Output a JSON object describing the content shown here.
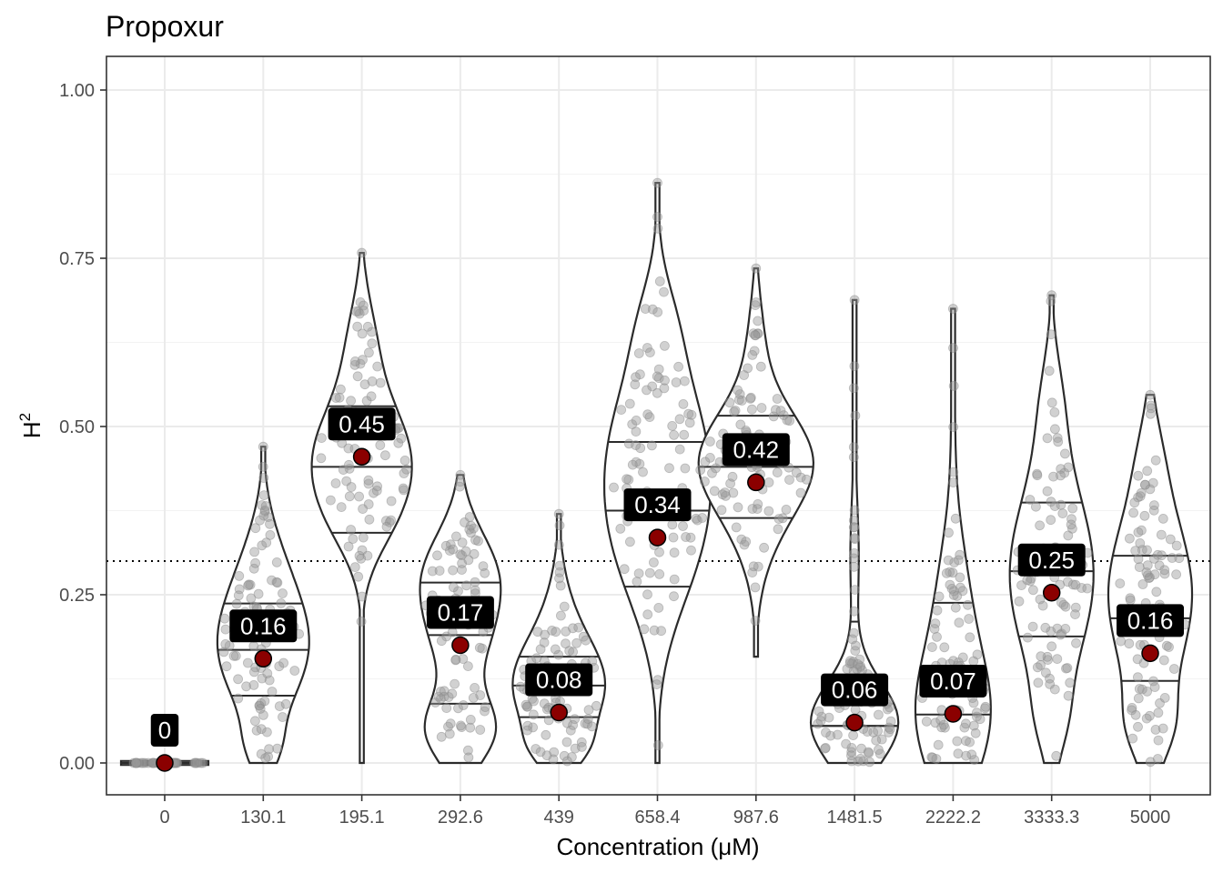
{
  "chart_data": {
    "type": "violin",
    "title": "Propoxur",
    "xlabel": "Concentration (μM)",
    "ylabel": "H",
    "ylabel_superscript": "2",
    "ylim": [
      -0.05,
      1.05
    ],
    "yticks": [
      0.0,
      0.25,
      0.5,
      0.75,
      1.0
    ],
    "ytick_labels": [
      "0.00",
      "0.25",
      "0.50",
      "0.75",
      "1.00"
    ],
    "threshold": 0.3,
    "categories": [
      "0",
      "130.1",
      "195.1",
      "292.6",
      "439",
      "658.4",
      "987.6",
      "1481.5",
      "2222.2",
      "3333.3",
      "5000"
    ],
    "means": [
      0.0,
      0.155,
      0.455,
      0.175,
      0.075,
      0.335,
      0.417,
      0.06,
      0.073,
      0.253,
      0.163
    ],
    "mean_labels": [
      "0",
      "0.16",
      "0.45",
      "0.17",
      "0.08",
      "0.34",
      "0.42",
      "0.06",
      "0.07",
      "0.25",
      "0.16"
    ],
    "quantiles": [
      [
        0.0,
        0.0,
        0.0
      ],
      [
        0.1,
        0.168,
        0.237
      ],
      [
        0.342,
        0.44,
        0.53
      ],
      [
        0.088,
        0.19,
        0.268
      ],
      [
        0.068,
        0.115,
        0.158
      ],
      [
        0.262,
        0.375,
        0.477
      ],
      [
        0.364,
        0.44,
        0.516
      ],
      [
        0.055,
        0.055,
        0.21
      ],
      [
        0.0,
        0.072,
        0.238
      ],
      [
        0.188,
        0.285,
        0.387
      ],
      [
        0.122,
        0.215,
        0.308
      ]
    ],
    "violin_ranges": [
      [
        -0.003,
        0.003
      ],
      [
        0.0,
        0.47
      ],
      [
        0.0,
        0.758
      ],
      [
        0.0,
        0.428
      ],
      [
        0.0,
        0.37
      ],
      [
        0.0,
        0.862
      ],
      [
        0.158,
        0.735
      ],
      [
        0.0,
        0.688
      ],
      [
        0.0,
        0.675
      ],
      [
        0.0,
        0.695
      ],
      [
        0.0,
        0.547
      ]
    ]
  }
}
